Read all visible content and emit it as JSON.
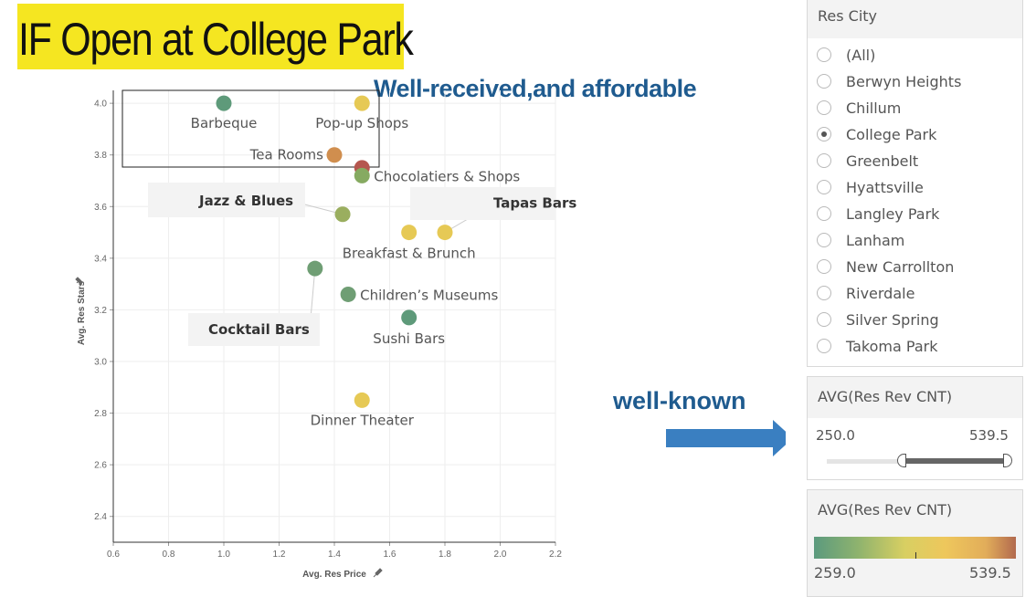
{
  "header": {
    "title": "IF Open at College Park"
  },
  "callouts": {
    "top": "Well-received,and affordable",
    "right": "well-known"
  },
  "colors": {
    "title_bg": "#f5e621",
    "callout_text": "#1f5b8f",
    "arrow": "#3a7fc1",
    "legend_low": "#5b9a7e",
    "legend_mid": "#e8c95a",
    "legend_high": "#b26a4e"
  },
  "filter": {
    "title": "Res City",
    "selected": "College Park",
    "options": [
      "(All)",
      "Berwyn Heights",
      "Chillum",
      "College Park",
      "Greenbelt",
      "Hyattsville",
      "Langley Park",
      "Lanham",
      "New Carrollton",
      "Riverdale",
      "Silver Spring",
      "Takoma Park"
    ]
  },
  "range_slider": {
    "title": "AVG(Res Rev CNT)",
    "min_label": "250.0",
    "max_label": "539.5",
    "low": 250.0,
    "high": 539.5
  },
  "color_legend": {
    "title": "AVG(Res Rev CNT)",
    "min_label": "259.0",
    "max_label": "539.5"
  },
  "chart_data": {
    "type": "scatter",
    "xlabel": "Avg. Res Price",
    "ylabel": "Avg. Res Stars",
    "xlim": [
      0.6,
      2.2
    ],
    "ylim": [
      2.3,
      4.05
    ],
    "xticks": [
      "0.6",
      "0.8",
      "1.0",
      "1.2",
      "1.4",
      "1.6",
      "1.8",
      "2.0",
      "2.2"
    ],
    "yticks": [
      "2.4",
      "2.6",
      "2.8",
      "3.0",
      "3.2",
      "3.4",
      "3.6",
      "3.8",
      "4.0"
    ],
    "grid": true,
    "points": [
      {
        "label": "Barbeque",
        "x": 1.0,
        "y": 4.0,
        "color": "#5e9a7a",
        "bold": false
      },
      {
        "label": "Pop-up Shops",
        "x": 1.5,
        "y": 4.0,
        "color": "#e6c955",
        "bold": false
      },
      {
        "label": "Tea Rooms",
        "x": 1.4,
        "y": 3.8,
        "color": "#d08e4e",
        "bold": false
      },
      {
        "label": "",
        "x": 1.5,
        "y": 3.75,
        "color": "#b5574f",
        "bold": false
      },
      {
        "label": "Chocolatiers & Shops",
        "x": 1.5,
        "y": 3.72,
        "color": "#86aa61",
        "bold": false
      },
      {
        "label": "Jazz & Blues",
        "x": 1.43,
        "y": 3.57,
        "color": "#9aae5f",
        "bold": true
      },
      {
        "label": "Breakfast & Brunch",
        "x": 1.67,
        "y": 3.5,
        "color": "#e6c955",
        "bold": false
      },
      {
        "label": "Tapas Bars",
        "x": 1.8,
        "y": 3.5,
        "color": "#e6c955",
        "bold": true
      },
      {
        "label": "Cocktail Bars",
        "x": 1.33,
        "y": 3.36,
        "color": "#6f9e74",
        "bold": true
      },
      {
        "label": "Children’s Museums",
        "x": 1.45,
        "y": 3.26,
        "color": "#6f9e74",
        "bold": false
      },
      {
        "label": "Sushi Bars",
        "x": 1.67,
        "y": 3.17,
        "color": "#5e9a7a",
        "bold": false
      },
      {
        "label": "Dinner Theater",
        "x": 1.5,
        "y": 2.85,
        "color": "#e6c955",
        "bold": false
      }
    ]
  }
}
